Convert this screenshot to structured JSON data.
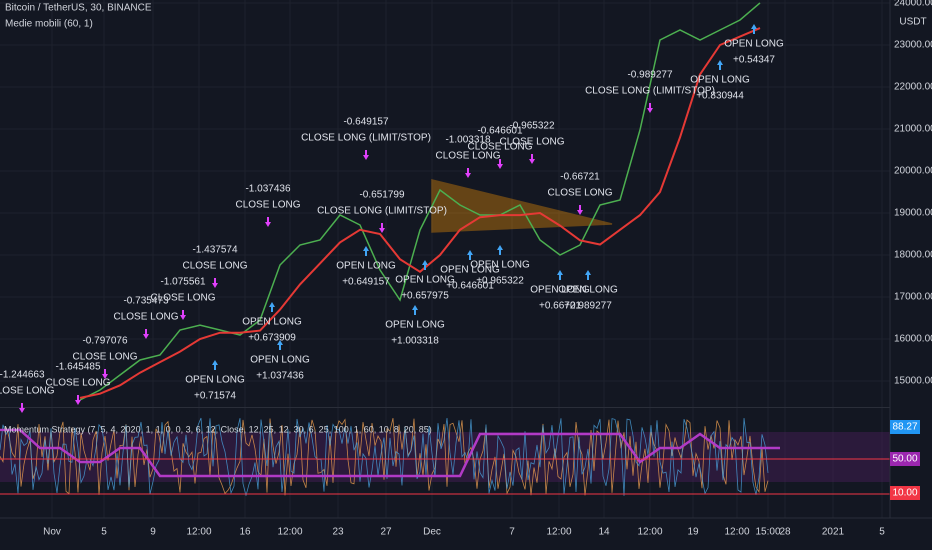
{
  "header": {
    "title": "Bitcoin / TetherUS, 30, BINANCE",
    "indicator": "Medie mobili (60, 1)",
    "currency": "USDT"
  },
  "chart_data": {
    "type": "line",
    "series": [
      {
        "color": "#4caf50",
        "values": [
          14548,
          14786,
          15143,
          15500,
          15619,
          16214,
          16333,
          16214,
          16095,
          16452,
          17762,
          18238,
          18357,
          18952,
          18714,
          17643,
          16929,
          18595,
          19548,
          19190,
          18952,
          18952,
          19190,
          18357,
          18000,
          18238,
          19190,
          19310,
          20976,
          23119,
          23357,
          23119,
          23357,
          23595,
          24000
        ]
      },
      {
        "name": "Medie mobili (60, 1)",
        "color": "#e53935",
        "values": [
          14600,
          14700,
          14900,
          15200,
          15450,
          15700,
          16000,
          16150,
          16150,
          16200,
          16700,
          17300,
          17800,
          18300,
          18600,
          18500,
          17900,
          17600,
          18000,
          18600,
          18900,
          18950,
          18950,
          19000,
          18700,
          18350,
          18250,
          18600,
          18950,
          19500,
          20800,
          22300,
          23000,
          23200,
          23400
        ]
      }
    ],
    "ylim": [
      14430,
      24070
    ],
    "yticks": [
      {
        "value": 15000,
        "label": "15000.00"
      },
      {
        "value": 16000,
        "label": "16000.00"
      },
      {
        "value": 17000,
        "label": "17000.00"
      },
      {
        "value": 18000,
        "label": "18000.00"
      },
      {
        "value": 19000,
        "label": "19000.00"
      },
      {
        "value": 20000,
        "label": "20000.00"
      },
      {
        "value": 21000,
        "label": "21000.00"
      },
      {
        "value": 22000,
        "label": "22000.00"
      },
      {
        "value": 23000,
        "label": "23000.00"
      },
      {
        "value": 24000,
        "label": "24000.00"
      }
    ],
    "x_labels": [
      "Nov",
      "5",
      "9",
      "12:00",
      "16",
      "12:00",
      "23",
      "27",
      "Dec",
      "7",
      "12:00",
      "14",
      "12:00",
      "19",
      "12:00",
      "15:00",
      "28",
      "2021",
      "5"
    ],
    "grid": true,
    "annotations": [
      {
        "lines": [
          "-1.244663",
          "CLOSE LONG"
        ]
      },
      {
        "lines": [
          "-1.645485",
          "CLOSE LONG"
        ]
      },
      {
        "lines": [
          "-0.797076",
          "CLOSE LONG"
        ]
      },
      {
        "lines": [
          "-0.735473",
          "CLOSE LONG"
        ]
      },
      {
        "lines": [
          "-1.075561",
          "CLOSE LONG"
        ]
      },
      {
        "lines": [
          "-1.437574",
          "CLOSE LONG"
        ]
      },
      {
        "lines": [
          "-1.037436",
          "CLOSE LONG"
        ]
      },
      {
        "lines": [
          "-0.649157",
          "CLOSE LONG (LIMIT/STOP)"
        ]
      },
      {
        "lines": [
          "-0.651799",
          "CLOSE LONG (LIMIT/STOP)"
        ]
      },
      {
        "lines": [
          "-1.003318",
          "CLOSE LONG"
        ]
      },
      {
        "lines": [
          "-0.646601",
          "CLOSE LONG"
        ]
      },
      {
        "lines": [
          "-0.965322",
          "CLOSE LONG"
        ]
      },
      {
        "lines": [
          "-0.66721",
          "CLOSE LONG"
        ]
      },
      {
        "lines": [
          "-0.989277",
          "CLOSE LONG (LIMIT/STOP)"
        ]
      },
      {
        "lines": [
          "OPEN LONG",
          "+0.54347"
        ]
      },
      {
        "lines": [
          "OPEN LONG",
          "+0.71574"
        ]
      },
      {
        "lines": [
          "OPEN LONG",
          "+0.673909"
        ]
      },
      {
        "lines": [
          "OPEN LONG",
          "+1.037436"
        ]
      },
      {
        "lines": [
          "OPEN LONG",
          "+0.649157"
        ]
      },
      {
        "lines": [
          "OPEN LONG",
          "+0.657975"
        ]
      },
      {
        "lines": [
          "OPEN LONG",
          "+1.003318"
        ]
      },
      {
        "lines": [
          "OPEN LONG",
          "+0.646601"
        ]
      },
      {
        "lines": [
          "OPEN LONG",
          "+0.965322"
        ]
      },
      {
        "lines": [
          "OPEN LONG",
          "+0.66721"
        ]
      },
      {
        "lines": [
          "OPEN LONG",
          "+0.989277"
        ]
      },
      {
        "lines": [
          "OPEN LONG",
          "+0.830944"
        ]
      }
    ]
  },
  "oscillator": {
    "title": "Momentum Strategy (7, 5, 4, 2020, 1, 1, 0, 0, 3, 6, 12, Close, 12, 25, 12, 30, 6, 25, 100, 1, 60, 10, 8, 20, 85)",
    "value_labels": [
      "88.27",
      "50.00",
      "10.00"
    ]
  }
}
